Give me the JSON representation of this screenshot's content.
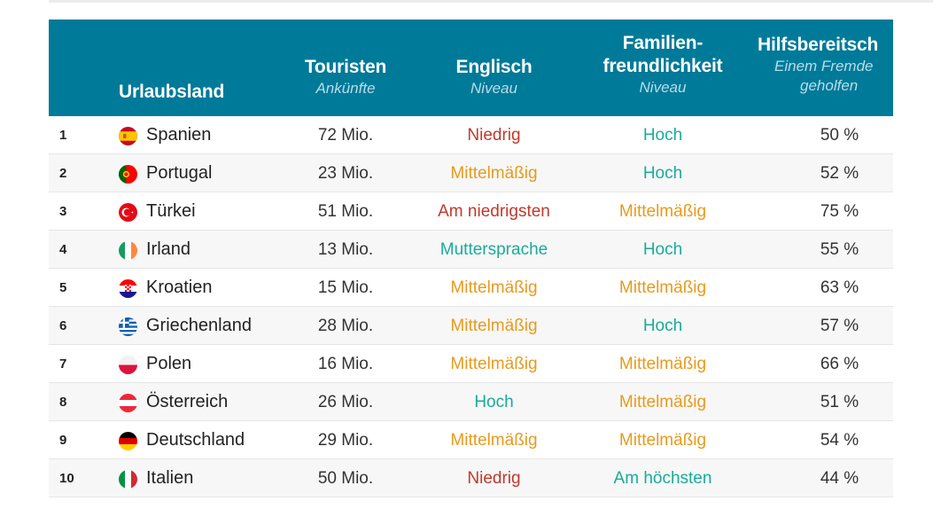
{
  "columns": {
    "country": {
      "title": "Urlaubsland"
    },
    "tourists": {
      "title": "Touristen",
      "sub": "Ankünfte"
    },
    "english": {
      "title": "Englisch",
      "sub": "Niveau"
    },
    "family": {
      "title1": "Familien-",
      "title2": "freundlichkeit",
      "sub": "Niveau"
    },
    "help": {
      "title": "Hilfsbereitsch",
      "sub1": "Einem Fremde",
      "sub2": "geholfen"
    }
  },
  "colors": {
    "header_bg": "#007a99",
    "level_low": "#c0392b",
    "level_mid": "#e89a1c",
    "level_high": "#1aab9b"
  },
  "rows": [
    {
      "rank": "1",
      "flag": "spain-flag-icon",
      "country": "Spanien",
      "tourists": "72 Mio.",
      "english": "Niedrig",
      "english_level": "red",
      "family": "Hoch",
      "family_level": "teal",
      "help": "50 %"
    },
    {
      "rank": "2",
      "flag": "portugal-flag-icon",
      "country": "Portugal",
      "tourists": "23 Mio.",
      "english": "Mittelmäßig",
      "english_level": "orange",
      "family": "Hoch",
      "family_level": "teal",
      "help": "52 %"
    },
    {
      "rank": "3",
      "flag": "turkey-flag-icon",
      "country": "Türkei",
      "tourists": "51 Mio.",
      "english": "Am niedrigsten",
      "english_level": "red",
      "family": "Mittelmäßig",
      "family_level": "orange",
      "help": "75 %"
    },
    {
      "rank": "4",
      "flag": "ireland-flag-icon",
      "country": "Irland",
      "tourists": "13 Mio.",
      "english": "Muttersprache",
      "english_level": "teal",
      "family": "Hoch",
      "family_level": "teal",
      "help": "55 %"
    },
    {
      "rank": "5",
      "flag": "croatia-flag-icon",
      "country": "Kroatien",
      "tourists": "15 Mio.",
      "english": "Mittelmäßig",
      "english_level": "orange",
      "family": "Mittelmäßig",
      "family_level": "orange",
      "help": "63 %"
    },
    {
      "rank": "6",
      "flag": "greece-flag-icon",
      "country": "Griechenland",
      "tourists": "28 Mio.",
      "english": "Mittelmäßig",
      "english_level": "orange",
      "family": "Hoch",
      "family_level": "teal",
      "help": "57 %"
    },
    {
      "rank": "7",
      "flag": "poland-flag-icon",
      "country": "Polen",
      "tourists": "16 Mio.",
      "english": "Mittelmäßig",
      "english_level": "orange",
      "family": "Mittelmäßig",
      "family_level": "orange",
      "help": "66 %"
    },
    {
      "rank": "8",
      "flag": "austria-flag-icon",
      "country": "Österreich",
      "tourists": "26 Mio.",
      "english": "Hoch",
      "english_level": "teal",
      "family": "Mittelmäßig",
      "family_level": "orange",
      "help": "51 %"
    },
    {
      "rank": "9",
      "flag": "germany-flag-icon",
      "country": "Deutschland",
      "tourists": "29 Mio.",
      "english": "Mittelmäßig",
      "english_level": "orange",
      "family": "Mittelmäßig",
      "family_level": "orange",
      "help": "54 %"
    },
    {
      "rank": "10",
      "flag": "italy-flag-icon",
      "country": "Italien",
      "tourists": "50 Mio.",
      "english": "Niedrig",
      "english_level": "red",
      "family": "Am höchsten",
      "family_level": "teal",
      "help": "44 %"
    }
  ]
}
